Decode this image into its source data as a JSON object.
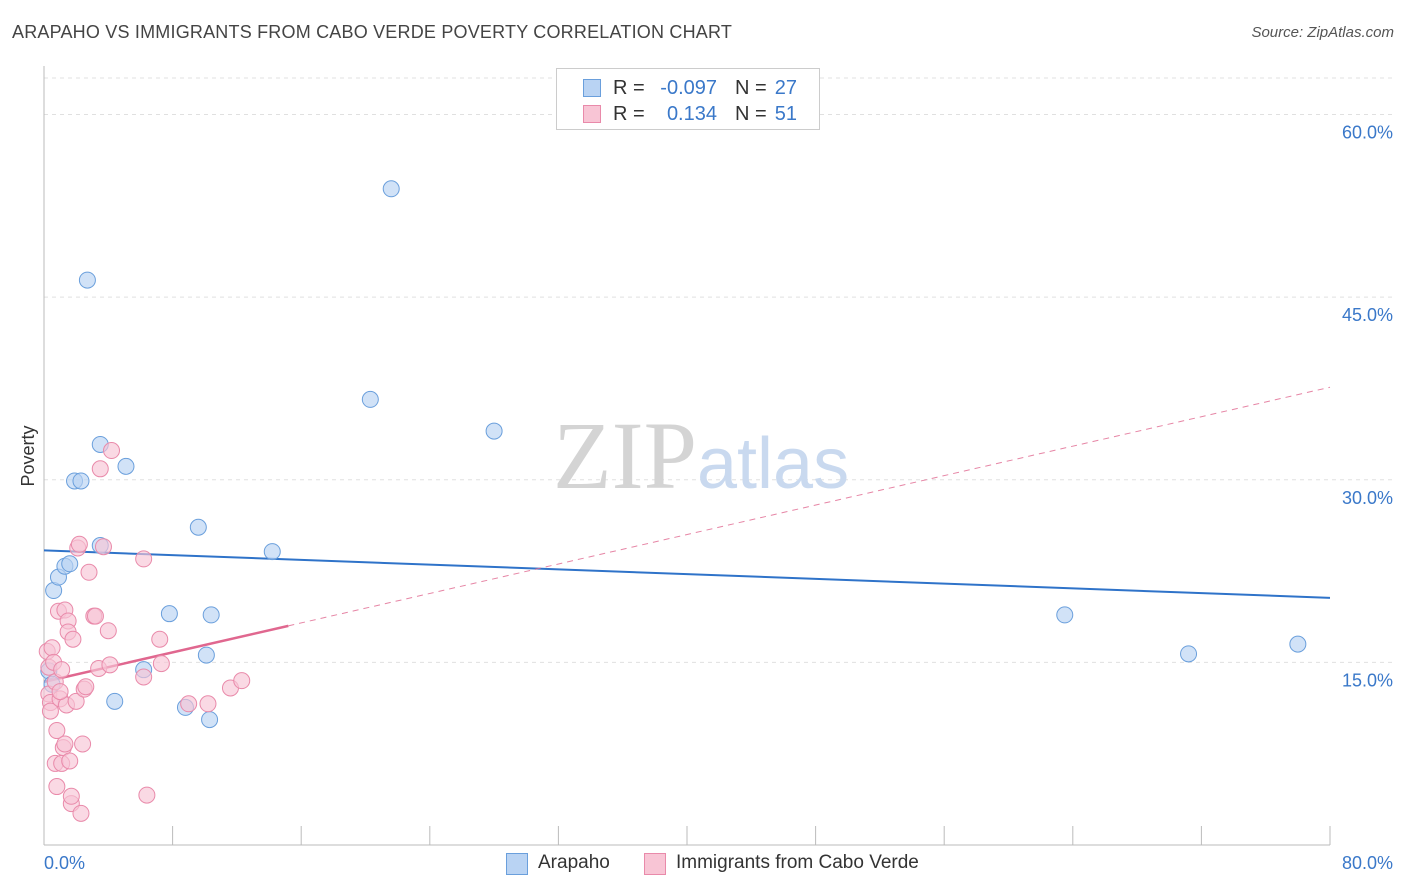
{
  "header": {
    "title": "ARAPAHO VS IMMIGRANTS FROM CABO VERDE POVERTY CORRELATION CHART",
    "source": "Source: ZipAtlas.com"
  },
  "watermark": {
    "zip": "ZIP",
    "atlas": "atlas"
  },
  "legend": {
    "rows": [
      {
        "r_label": "R =",
        "r_value": "-0.097",
        "n_label": "N =",
        "n_value": "27"
      },
      {
        "r_label": "R =",
        "r_value": "0.134",
        "n_label": "N =",
        "n_value": "51"
      }
    ]
  },
  "colors": {
    "blue_fill": "#b9d3f3",
    "blue_stroke": "#6a9fdc",
    "blue_line": "#2f73c9",
    "pink_fill": "#f8c5d5",
    "pink_stroke": "#e98aaa",
    "pink_line": "#e0678f",
    "tick_label": "#3a78c9",
    "grid": "#e0e0e0"
  },
  "chart_data": {
    "type": "scatter",
    "title": "ARAPAHO VS IMMIGRANTS FROM CABO VERDE POVERTY CORRELATION CHART",
    "xlabel": "",
    "ylabel": "Poverty",
    "xlim": [
      0,
      80
    ],
    "ylim": [
      0,
      63
    ],
    "x_tick_labels": [
      "0.0%",
      "80.0%"
    ],
    "y_ticks": [
      15,
      30,
      45,
      60
    ],
    "y_tick_labels": [
      "15.0%",
      "30.0%",
      "45.0%",
      "60.0%"
    ],
    "grid": true,
    "legend_position": "bottom",
    "series": [
      {
        "name": "Arapaho",
        "r": -0.097,
        "n": 27,
        "trend": {
          "x": [
            0,
            80
          ],
          "y": [
            24.2,
            20.3
          ],
          "style": "solid"
        },
        "points": [
          [
            0.3,
            14.3
          ],
          [
            0.5,
            13.2
          ],
          [
            0.6,
            20.9
          ],
          [
            0.9,
            22.0
          ],
          [
            1.3,
            22.9
          ],
          [
            1.6,
            23.1
          ],
          [
            2.7,
            46.4
          ],
          [
            1.9,
            29.9
          ],
          [
            2.3,
            29.9
          ],
          [
            3.5,
            32.9
          ],
          [
            5.1,
            31.1
          ],
          [
            3.5,
            24.6
          ],
          [
            6.2,
            14.4
          ],
          [
            7.8,
            19.0
          ],
          [
            8.8,
            11.3
          ],
          [
            9.6,
            26.1
          ],
          [
            10.1,
            15.6
          ],
          [
            10.3,
            10.3
          ],
          [
            10.4,
            18.9
          ],
          [
            14.2,
            24.1
          ],
          [
            20.3,
            36.6
          ],
          [
            21.6,
            53.9
          ],
          [
            28.0,
            34.0
          ],
          [
            63.5,
            18.9
          ],
          [
            71.2,
            15.7
          ],
          [
            78.0,
            16.5
          ],
          [
            4.4,
            11.8
          ]
        ]
      },
      {
        "name": "Immigrants from Cabo Verde",
        "r": 0.134,
        "n": 51,
        "trend": {
          "x": [
            0,
            15.2
          ],
          "y": [
            13.4,
            18.0
          ],
          "style": "solid",
          "extended": {
            "x": [
              15.2,
              80
            ],
            "y": [
              18.0,
              37.6
            ],
            "style": "dashed"
          }
        },
        "points": [
          [
            0.2,
            15.9
          ],
          [
            0.3,
            14.6
          ],
          [
            0.3,
            12.4
          ],
          [
            0.4,
            11.7
          ],
          [
            0.4,
            11.0
          ],
          [
            0.5,
            16.2
          ],
          [
            0.6,
            15.0
          ],
          [
            0.7,
            13.4
          ],
          [
            0.7,
            6.7
          ],
          [
            0.8,
            4.8
          ],
          [
            0.8,
            9.4
          ],
          [
            0.9,
            19.2
          ],
          [
            1.0,
            12.0
          ],
          [
            1.1,
            6.7
          ],
          [
            1.1,
            14.4
          ],
          [
            1.2,
            8.0
          ],
          [
            1.3,
            8.3
          ],
          [
            1.3,
            19.3
          ],
          [
            1.4,
            11.5
          ],
          [
            1.5,
            18.4
          ],
          [
            1.5,
            17.5
          ],
          [
            1.6,
            6.9
          ],
          [
            1.7,
            3.4
          ],
          [
            1.7,
            4.0
          ],
          [
            1.8,
            16.9
          ],
          [
            2.0,
            11.8
          ],
          [
            2.1,
            24.4
          ],
          [
            2.2,
            24.7
          ],
          [
            2.3,
            2.6
          ],
          [
            2.4,
            8.3
          ],
          [
            2.5,
            12.8
          ],
          [
            2.6,
            13.0
          ],
          [
            2.8,
            22.4
          ],
          [
            3.1,
            18.8
          ],
          [
            3.2,
            18.8
          ],
          [
            3.4,
            14.5
          ],
          [
            3.5,
            30.9
          ],
          [
            3.7,
            24.5
          ],
          [
            4.0,
            17.6
          ],
          [
            4.1,
            14.8
          ],
          [
            4.2,
            32.4
          ],
          [
            6.2,
            23.5
          ],
          [
            6.2,
            13.8
          ],
          [
            6.4,
            4.1
          ],
          [
            7.2,
            16.9
          ],
          [
            7.3,
            14.9
          ],
          [
            9.0,
            11.6
          ],
          [
            10.2,
            11.6
          ],
          [
            11.6,
            12.9
          ],
          [
            12.3,
            13.5
          ],
          [
            1.0,
            12.6
          ]
        ]
      }
    ]
  },
  "bottom_legend": {
    "items": [
      {
        "label": "Arapaho"
      },
      {
        "label": "Immigrants from Cabo Verde"
      }
    ]
  }
}
